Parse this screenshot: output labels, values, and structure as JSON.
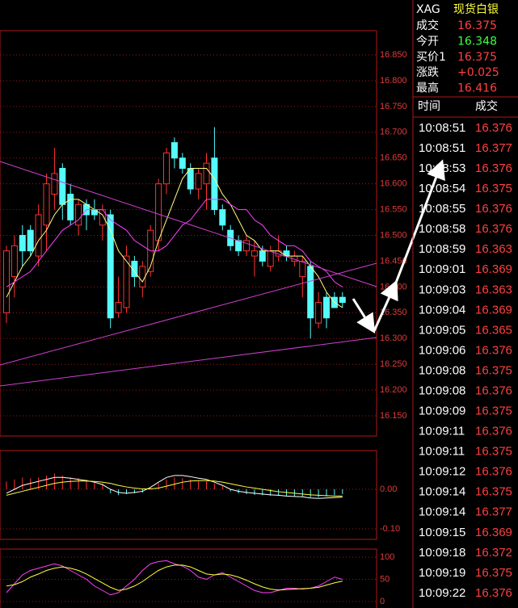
{
  "chart_data": [
    {
      "type": "candlestick",
      "up_color": "#ff3232",
      "down_color": "#54fcfc",
      "grid": true,
      "ylim": [
        16.11,
        16.9
      ],
      "yticks": [
        {
          "value": 16.15,
          "label": "16.150"
        },
        {
          "value": 16.2,
          "label": "16.200"
        },
        {
          "value": 16.25,
          "label": "16.250"
        },
        {
          "value": 16.3,
          "label": "16.300"
        },
        {
          "value": 16.35,
          "label": "16.350"
        },
        {
          "value": 16.4,
          "label": "16.400"
        },
        {
          "value": 16.45,
          "label": "16.450"
        },
        {
          "value": 16.5,
          "label": "16.500"
        },
        {
          "value": 16.55,
          "label": "16.550"
        },
        {
          "value": 16.6,
          "label": "16.600"
        },
        {
          "value": 16.65,
          "label": "16.650"
        },
        {
          "value": 16.7,
          "label": "16.700"
        },
        {
          "value": 16.75,
          "label": "16.750"
        },
        {
          "value": 16.8,
          "label": "16.800"
        },
        {
          "value": 16.85,
          "label": "16.850"
        }
      ],
      "open": [
        16.35,
        16.42,
        16.5,
        16.51,
        16.46,
        16.52,
        16.58,
        16.63,
        16.58,
        16.52,
        16.56,
        16.55,
        16.52,
        16.54,
        16.35,
        16.36,
        16.45,
        16.4,
        16.43,
        16.49,
        16.6,
        16.68,
        16.65,
        16.63,
        16.59,
        16.6,
        16.65,
        16.55,
        16.51,
        16.49,
        16.47,
        16.46,
        16.47,
        16.44,
        16.46,
        16.47,
        16.45,
        16.42,
        16.44,
        16.33,
        16.38,
        16.38,
        16.38
      ],
      "high": [
        16.48,
        16.5,
        16.52,
        16.52,
        16.56,
        16.62,
        16.67,
        16.64,
        16.6,
        16.57,
        16.57,
        16.57,
        16.56,
        16.55,
        16.42,
        16.48,
        16.46,
        16.45,
        16.52,
        16.61,
        16.67,
        16.69,
        16.66,
        16.64,
        16.63,
        16.66,
        16.71,
        16.56,
        16.52,
        16.5,
        16.5,
        16.49,
        16.48,
        16.48,
        16.5,
        16.48,
        16.47,
        16.46,
        16.45,
        16.39,
        16.39,
        16.39,
        16.39
      ],
      "low": [
        16.33,
        16.38,
        16.44,
        16.46,
        16.44,
        16.47,
        16.55,
        16.53,
        16.52,
        16.5,
        16.51,
        16.53,
        16.49,
        16.32,
        16.34,
        16.35,
        16.4,
        16.38,
        16.42,
        16.47,
        16.58,
        16.63,
        16.62,
        16.58,
        16.57,
        16.55,
        16.54,
        16.51,
        16.47,
        16.46,
        16.46,
        16.42,
        16.44,
        16.43,
        16.45,
        16.45,
        16.44,
        16.38,
        16.3,
        16.32,
        16.32,
        16.36,
        16.36
      ],
      "close": [
        16.47,
        16.48,
        16.47,
        16.47,
        16.54,
        16.6,
        16.62,
        16.56,
        16.53,
        16.56,
        16.54,
        16.54,
        16.55,
        16.34,
        16.37,
        16.46,
        16.42,
        16.44,
        16.51,
        16.6,
        16.66,
        16.65,
        16.63,
        16.59,
        16.62,
        16.64,
        16.55,
        16.52,
        16.48,
        16.47,
        16.49,
        16.47,
        16.45,
        16.47,
        16.47,
        16.46,
        16.46,
        16.45,
        16.34,
        16.37,
        16.34,
        16.36,
        16.37
      ],
      "series": [
        {
          "color": "#ffff80",
          "values": [
            16.38,
            16.41,
            16.44,
            16.46,
            16.49,
            16.51,
            16.54,
            16.56,
            16.57,
            16.57,
            16.56,
            16.55,
            16.54,
            16.51,
            16.47,
            16.45,
            16.43,
            16.41,
            16.44,
            16.49,
            16.53,
            16.57,
            16.61,
            16.63,
            16.63,
            16.63,
            16.61,
            16.58,
            16.56,
            16.53,
            16.5,
            16.49,
            16.47,
            16.47,
            16.47,
            16.46,
            16.46,
            16.46,
            16.44,
            16.42,
            16.39,
            16.37,
            16.36
          ]
        },
        {
          "color": "#ff40ff",
          "values": [
            16.4,
            16.41,
            16.42,
            16.43,
            16.45,
            16.47,
            16.49,
            16.51,
            16.52,
            16.53,
            16.55,
            16.55,
            16.55,
            16.53,
            16.52,
            16.51,
            16.49,
            16.48,
            16.47,
            16.47,
            16.48,
            16.5,
            16.52,
            16.53,
            16.55,
            16.57,
            16.57,
            16.57,
            16.56,
            16.55,
            16.55,
            16.53,
            16.52,
            16.5,
            16.49,
            16.48,
            16.48,
            16.47,
            16.45,
            16.44,
            16.43,
            16.41,
            16.4
          ]
        }
      ]
    },
    {
      "type": "combo",
      "up_color": "#ff3232",
      "down_color": "#54fcfc",
      "grid": true,
      "ylim": [
        -0.12,
        0.09
      ],
      "yticks": [
        {
          "value": -0.1,
          "label": "-0.10"
        },
        {
          "value": 0,
          "label": "0.00"
        }
      ],
      "series": [
        {
          "kind": "bar",
          "values": [
            0.02,
            0.025,
            0.03,
            0.028,
            0.03,
            0.035,
            0.04,
            0.035,
            0.03,
            0.028,
            0.025,
            0.02,
            0.015,
            -0.01,
            -0.015,
            -0.012,
            -0.01,
            -0.008,
            0.005,
            0.015,
            0.025,
            0.03,
            0.028,
            0.025,
            0.022,
            0.02,
            0.015,
            0.008,
            -0.005,
            -0.01,
            -0.012,
            -0.014,
            -0.015,
            -0.016,
            -0.016,
            -0.017,
            -0.018,
            -0.018,
            -0.02,
            -0.02,
            -0.018,
            -0.015,
            -0.012
          ]
        },
        {
          "kind": "line",
          "color": "#ffffff",
          "values": [
            -0.01,
            0.0,
            0.01,
            0.015,
            0.02,
            0.025,
            0.03,
            0.03,
            0.028,
            0.025,
            0.022,
            0.018,
            0.012,
            0.0,
            -0.008,
            -0.01,
            -0.008,
            -0.005,
            0.005,
            0.018,
            0.03,
            0.035,
            0.035,
            0.032,
            0.028,
            0.025,
            0.018,
            0.01,
            0.0,
            -0.005,
            -0.008,
            -0.01,
            -0.012,
            -0.014,
            -0.015,
            -0.017,
            -0.018,
            -0.019,
            -0.022,
            -0.023,
            -0.022,
            -0.021,
            -0.02
          ]
        },
        {
          "kind": "line",
          "color": "#ffff40",
          "values": [
            -0.015,
            -0.01,
            -0.005,
            0.0,
            0.005,
            0.01,
            0.015,
            0.018,
            0.02,
            0.021,
            0.021,
            0.02,
            0.018,
            0.015,
            0.01,
            0.006,
            0.003,
            0.001,
            0.001,
            0.003,
            0.008,
            0.013,
            0.018,
            0.021,
            0.022,
            0.022,
            0.021,
            0.018,
            0.014,
            0.01,
            0.006,
            0.003,
            0.0,
            -0.003,
            -0.006,
            -0.008,
            -0.01,
            -0.012,
            -0.014,
            -0.015,
            -0.016,
            -0.017,
            -0.017
          ]
        }
      ]
    },
    {
      "type": "line",
      "grid": true,
      "ylim": [
        -14,
        115
      ],
      "yticks": [
        0,
        50,
        100
      ],
      "series": [
        {
          "color": "#ff40ff",
          "values": [
            20,
            40,
            60,
            70,
            75,
            80,
            85,
            80,
            70,
            60,
            50,
            35,
            25,
            15,
            20,
            35,
            50,
            70,
            85,
            90,
            92,
            85,
            80,
            70,
            55,
            50,
            60,
            65,
            55,
            45,
            35,
            25,
            20,
            20,
            25,
            30,
            30,
            28,
            30,
            35,
            45,
            55,
            50
          ]
        },
        {
          "color": "#ffff40",
          "values": [
            35,
            38,
            45,
            55,
            62,
            70,
            75,
            78,
            75,
            70,
            62,
            52,
            42,
            32,
            25,
            28,
            35,
            45,
            58,
            70,
            78,
            82,
            82,
            78,
            70,
            62,
            60,
            62,
            60,
            55,
            48,
            40,
            33,
            28,
            26,
            27,
            28,
            29,
            30,
            32,
            37,
            42,
            46
          ]
        }
      ]
    }
  ],
  "quote": {
    "symbol": "XAG",
    "name": "现货白银",
    "rows": [
      {
        "label": "成交",
        "value": "16.375",
        "color": "#ff4040"
      },
      {
        "label": "今开",
        "value": "16.348",
        "color": "#40ff40"
      },
      {
        "label": "买价1",
        "value": "16.375",
        "color": "#ff4040"
      },
      {
        "label": "涨跌",
        "value": "+0.025",
        "color": "#ff4040"
      },
      {
        "label": "最高",
        "value": "16.416",
        "color": "#ff4040"
      }
    ]
  },
  "trades": {
    "headers": [
      "时间",
      "成交"
    ],
    "rows": [
      [
        "10:08:51",
        "16.376"
      ],
      [
        "10:08:51",
        "16.377"
      ],
      [
        "10:08:53",
        "16.376"
      ],
      [
        "10:08:54",
        "16.375"
      ],
      [
        "10:08:55",
        "16.376"
      ],
      [
        "10:08:58",
        "16.376"
      ],
      [
        "10:08:59",
        "16.363"
      ],
      [
        "10:09:01",
        "16.369"
      ],
      [
        "10:09:03",
        "16.363"
      ],
      [
        "10:09:04",
        "16.369"
      ],
      [
        "10:09:05",
        "16.365"
      ],
      [
        "10:09:06",
        "16.376"
      ],
      [
        "10:09:08",
        "16.375"
      ],
      [
        "10:09:08",
        "16.376"
      ],
      [
        "10:09:09",
        "16.375"
      ],
      [
        "10:09:11",
        "16.376"
      ],
      [
        "10:09:11",
        "16.375"
      ],
      [
        "10:09:12",
        "16.376"
      ],
      [
        "10:09:14",
        "16.375"
      ],
      [
        "10:09:14",
        "16.377"
      ],
      [
        "10:09:15",
        "16.369"
      ],
      [
        "10:09:18",
        "16.372"
      ],
      [
        "10:09:19",
        "16.375"
      ],
      [
        "10:09:22",
        "16.376"
      ]
    ]
  }
}
